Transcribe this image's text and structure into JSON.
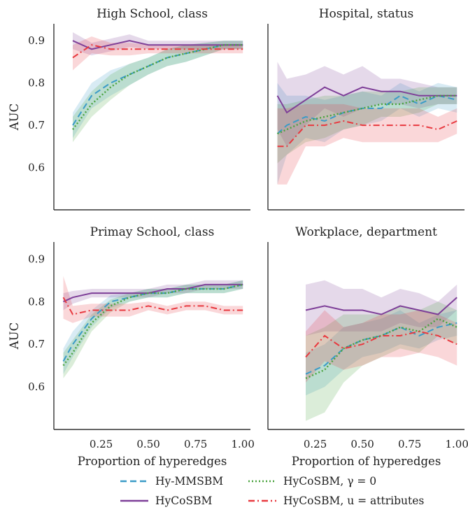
{
  "chart_data": [
    {
      "type": "line",
      "title": "High School, class",
      "xlabel": "",
      "ylabel": "AUC",
      "x": [
        0.1,
        0.2,
        0.3,
        0.4,
        0.5,
        0.6,
        0.7,
        0.8,
        0.9,
        1.0
      ],
      "ylim": [
        0.5,
        0.94
      ],
      "xlim": [
        0.0,
        1.04
      ],
      "series": [
        {
          "name": "Hy-MMSBM",
          "values": [
            0.7,
            0.77,
            0.8,
            0.82,
            0.84,
            0.86,
            0.87,
            0.88,
            0.89,
            0.89
          ],
          "band": [
            0.03,
            0.03,
            0.03,
            0.025,
            0.02,
            0.02,
            0.02,
            0.015,
            0.01,
            0.01
          ]
        },
        {
          "name": "HyCoSBM",
          "values": [
            0.9,
            0.88,
            0.89,
            0.9,
            0.89,
            0.89,
            0.89,
            0.89,
            0.89,
            0.89
          ],
          "band": [
            0.02,
            0.015,
            0.015,
            0.015,
            0.01,
            0.01,
            0.01,
            0.01,
            0.01,
            0.01
          ]
        },
        {
          "name": "HyCoSBM, γ = 0",
          "values": [
            0.69,
            0.75,
            0.79,
            0.82,
            0.84,
            0.86,
            0.87,
            0.88,
            0.89,
            0.89
          ],
          "band": [
            0.03,
            0.03,
            0.03,
            0.025,
            0.02,
            0.02,
            0.02,
            0.015,
            0.01,
            0.01
          ]
        },
        {
          "name": "HyCoSBM, u = attributes",
          "values": [
            0.86,
            0.89,
            0.88,
            0.88,
            0.88,
            0.88,
            0.88,
            0.88,
            0.88,
            0.88
          ],
          "band": [
            0.03,
            0.02,
            0.015,
            0.015,
            0.01,
            0.01,
            0.01,
            0.01,
            0.01,
            0.01
          ]
        }
      ]
    },
    {
      "type": "line",
      "title": "Hospital, status",
      "xlabel": "",
      "ylabel": "",
      "x": [
        0.05,
        0.1,
        0.2,
        0.3,
        0.4,
        0.5,
        0.6,
        0.7,
        0.8,
        0.9,
        1.0
      ],
      "ylim": [
        0.5,
        0.94
      ],
      "xlim": [
        0.0,
        1.04
      ],
      "series": [
        {
          "name": "Hy-MMSBM",
          "values": [
            0.68,
            0.7,
            0.72,
            0.71,
            0.73,
            0.74,
            0.74,
            0.77,
            0.75,
            0.77,
            0.76
          ],
          "band": [
            0.12,
            0.07,
            0.05,
            0.05,
            0.04,
            0.04,
            0.03,
            0.03,
            0.03,
            0.03,
            0.03
          ]
        },
        {
          "name": "HyCoSBM",
          "values": [
            0.77,
            0.73,
            0.76,
            0.79,
            0.77,
            0.79,
            0.78,
            0.78,
            0.77,
            0.77,
            0.77
          ],
          "band": [
            0.08,
            0.08,
            0.06,
            0.05,
            0.05,
            0.05,
            0.03,
            0.03,
            0.03,
            0.02,
            0.02
          ]
        },
        {
          "name": "HyCoSBM, γ = 0",
          "values": [
            0.68,
            0.69,
            0.71,
            0.72,
            0.73,
            0.74,
            0.75,
            0.75,
            0.76,
            0.77,
            0.77
          ],
          "band": [
            0.07,
            0.06,
            0.05,
            0.05,
            0.04,
            0.04,
            0.03,
            0.03,
            0.03,
            0.02,
            0.02
          ]
        },
        {
          "name": "HyCoSBM, u = attributes",
          "values": [
            0.65,
            0.65,
            0.7,
            0.7,
            0.71,
            0.7,
            0.7,
            0.7,
            0.7,
            0.69,
            0.71
          ],
          "band": [
            0.09,
            0.09,
            0.05,
            0.05,
            0.04,
            0.04,
            0.04,
            0.04,
            0.04,
            0.03,
            0.03
          ]
        }
      ]
    },
    {
      "type": "line",
      "title": "Primay School, class",
      "xlabel": "Proportion of hyperedges",
      "ylabel": "AUC",
      "x": [
        0.05,
        0.1,
        0.2,
        0.3,
        0.4,
        0.5,
        0.6,
        0.7,
        0.8,
        0.9,
        1.0
      ],
      "ylim": [
        0.5,
        0.94
      ],
      "xlim": [
        0.0,
        1.04
      ],
      "series": [
        {
          "name": "Hy-MMSBM",
          "values": [
            0.66,
            0.7,
            0.76,
            0.8,
            0.81,
            0.82,
            0.82,
            0.83,
            0.83,
            0.83,
            0.84
          ],
          "band": [
            0.03,
            0.03,
            0.02,
            0.015,
            0.01,
            0.01,
            0.01,
            0.01,
            0.01,
            0.01,
            0.01
          ]
        },
        {
          "name": "HyCoSBM",
          "values": [
            0.8,
            0.81,
            0.82,
            0.82,
            0.82,
            0.82,
            0.83,
            0.83,
            0.84,
            0.84,
            0.84
          ],
          "band": [
            0.02,
            0.015,
            0.01,
            0.01,
            0.01,
            0.01,
            0.01,
            0.01,
            0.01,
            0.01,
            0.01
          ]
        },
        {
          "name": "HyCoSBM, γ = 0",
          "values": [
            0.65,
            0.68,
            0.75,
            0.79,
            0.81,
            0.82,
            0.82,
            0.83,
            0.83,
            0.83,
            0.84
          ],
          "band": [
            0.03,
            0.03,
            0.02,
            0.015,
            0.01,
            0.01,
            0.01,
            0.01,
            0.01,
            0.01,
            0.01
          ]
        },
        {
          "name": "HyCoSBM, u = attributes",
          "values": [
            0.81,
            0.77,
            0.78,
            0.78,
            0.78,
            0.79,
            0.78,
            0.79,
            0.79,
            0.78,
            0.78
          ],
          "band": [
            0.05,
            0.02,
            0.015,
            0.015,
            0.015,
            0.01,
            0.01,
            0.01,
            0.01,
            0.01,
            0.01
          ]
        }
      ]
    },
    {
      "type": "line",
      "title": "Workplace, department",
      "xlabel": "Proportion of hyperedges",
      "ylabel": "",
      "x": [
        0.2,
        0.3,
        0.4,
        0.5,
        0.6,
        0.7,
        0.8,
        0.9,
        1.0
      ],
      "ylim": [
        0.5,
        0.94
      ],
      "xlim": [
        0.0,
        1.04
      ],
      "series": [
        {
          "name": "Hy-MMSBM",
          "values": [
            0.63,
            0.65,
            0.69,
            0.71,
            0.72,
            0.74,
            0.72,
            0.74,
            0.75
          ],
          "band": [
            0.05,
            0.05,
            0.05,
            0.04,
            0.04,
            0.04,
            0.03,
            0.03,
            0.03
          ]
        },
        {
          "name": "HyCoSBM",
          "values": [
            0.78,
            0.79,
            0.78,
            0.78,
            0.77,
            0.79,
            0.78,
            0.77,
            0.81
          ],
          "band": [
            0.06,
            0.06,
            0.05,
            0.05,
            0.04,
            0.04,
            0.04,
            0.03,
            0.03
          ]
        },
        {
          "name": "HyCoSBM, γ = 0",
          "values": [
            0.62,
            0.64,
            0.69,
            0.71,
            0.72,
            0.74,
            0.73,
            0.76,
            0.74
          ],
          "band": [
            0.1,
            0.1,
            0.08,
            0.06,
            0.05,
            0.05,
            0.05,
            0.04,
            0.04
          ]
        },
        {
          "name": "HyCoSBM, u = attributes",
          "values": [
            0.67,
            0.72,
            0.69,
            0.7,
            0.72,
            0.72,
            0.73,
            0.72,
            0.7
          ],
          "band": [
            0.06,
            0.06,
            0.05,
            0.05,
            0.05,
            0.05,
            0.05,
            0.05,
            0.05
          ]
        }
      ]
    }
  ],
  "yticks": [
    "0.6",
    "0.7",
    "0.8",
    "0.9"
  ],
  "xticks": [
    "0.25",
    "0.50",
    "0.75",
    "1.00"
  ],
  "legend": {
    "placement": "bottom-center",
    "items": [
      {
        "label": "Hy-MMSBM",
        "color": "#3a9bc7",
        "dash": "dashed"
      },
      {
        "label": "HyCoSBM",
        "color": "#7e3f98",
        "dash": "solid"
      },
      {
        "label": "HyCoSBM, γ = 0",
        "color": "#4aa33f",
        "dash": "dotted"
      },
      {
        "label": "HyCoSBM, u = attributes",
        "color": "#e8393f",
        "dash": "dashdot"
      }
    ]
  },
  "colors": {
    "hy_mmsbm": "#3a9bc7",
    "hycosbm": "#7e3f98",
    "gamma0": "#4aa33f",
    "attributes": "#e8393f"
  }
}
